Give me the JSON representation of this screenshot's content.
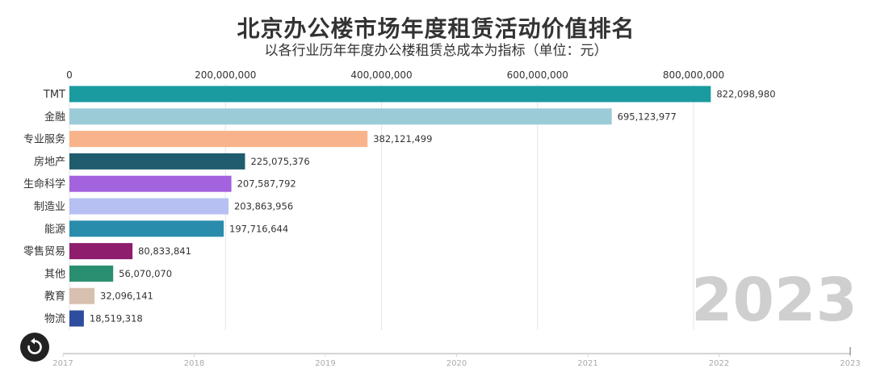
{
  "chart_data": {
    "type": "bar",
    "orientation": "horizontal",
    "title": "北京办公楼市场年度租赁活动价值排名",
    "subtitle": "以各行业历年年度办公楼租赁总成本为指标（单位：元）",
    "xlim": [
      0,
      1000000000
    ],
    "x_ticks": [
      0,
      200000000,
      400000000,
      600000000,
      800000000
    ],
    "x_tick_labels": [
      "0",
      "200,000,000",
      "400,000,000",
      "600,000,000",
      "800,000,000"
    ],
    "grid": true,
    "current_year": "2023",
    "categories": [
      "TMT",
      "金融",
      "专业服务",
      "房地产",
      "生命科学",
      "制造业",
      "能源",
      "零售贸易",
      "其他",
      "教育",
      "物流"
    ],
    "values": [
      822098980,
      695123977,
      382121499,
      225075376,
      207587792,
      203863956,
      197716644,
      80833841,
      56070070,
      32096141,
      18519318
    ],
    "value_labels": [
      "822,098,980",
      "695,123,977",
      "382,121,499",
      "225,075,376",
      "207,587,792",
      "203,863,956",
      "197,716,644",
      "80,833,841",
      "56,070,070",
      "32,096,141",
      "18,519,318"
    ],
    "colors": [
      "#1a9ba0",
      "#9ccbd8",
      "#f9b38a",
      "#1e5c6e",
      "#a362de",
      "#b6c0f3",
      "#2a8cad",
      "#8e1d6e",
      "#2a8f70",
      "#d8c0b0",
      "#2f4d9e"
    ],
    "timeline": {
      "years": [
        "2017",
        "2018",
        "2019",
        "2020",
        "2021",
        "2022",
        "2023"
      ],
      "current": "2023"
    }
  },
  "controls": {
    "replay_icon": "replay-icon"
  }
}
